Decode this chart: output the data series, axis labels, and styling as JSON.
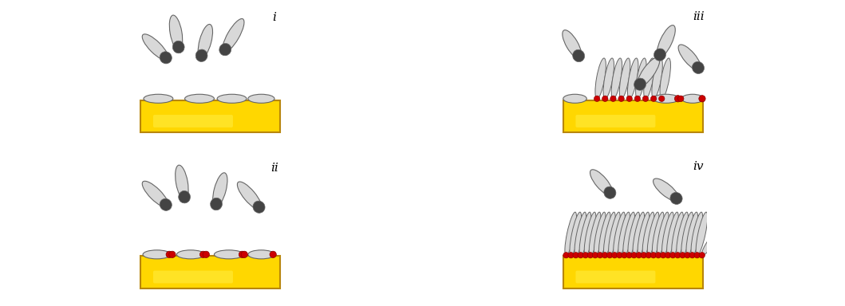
{
  "background_color": "#ffffff",
  "gold_color": "#FFD700",
  "gold_edge_color": "#B8860B",
  "gold_highlight": "#FFEE44",
  "molecule_body_color": "#D8D8D8",
  "molecule_edge_color": "#666666",
  "molecule_tip_color": "#444444",
  "red_dot_color": "#CC0000",
  "label_i": "i",
  "label_ii": "ii",
  "label_iii": "iii",
  "label_iv": "iv",
  "fig_width": 10.59,
  "fig_height": 3.84
}
